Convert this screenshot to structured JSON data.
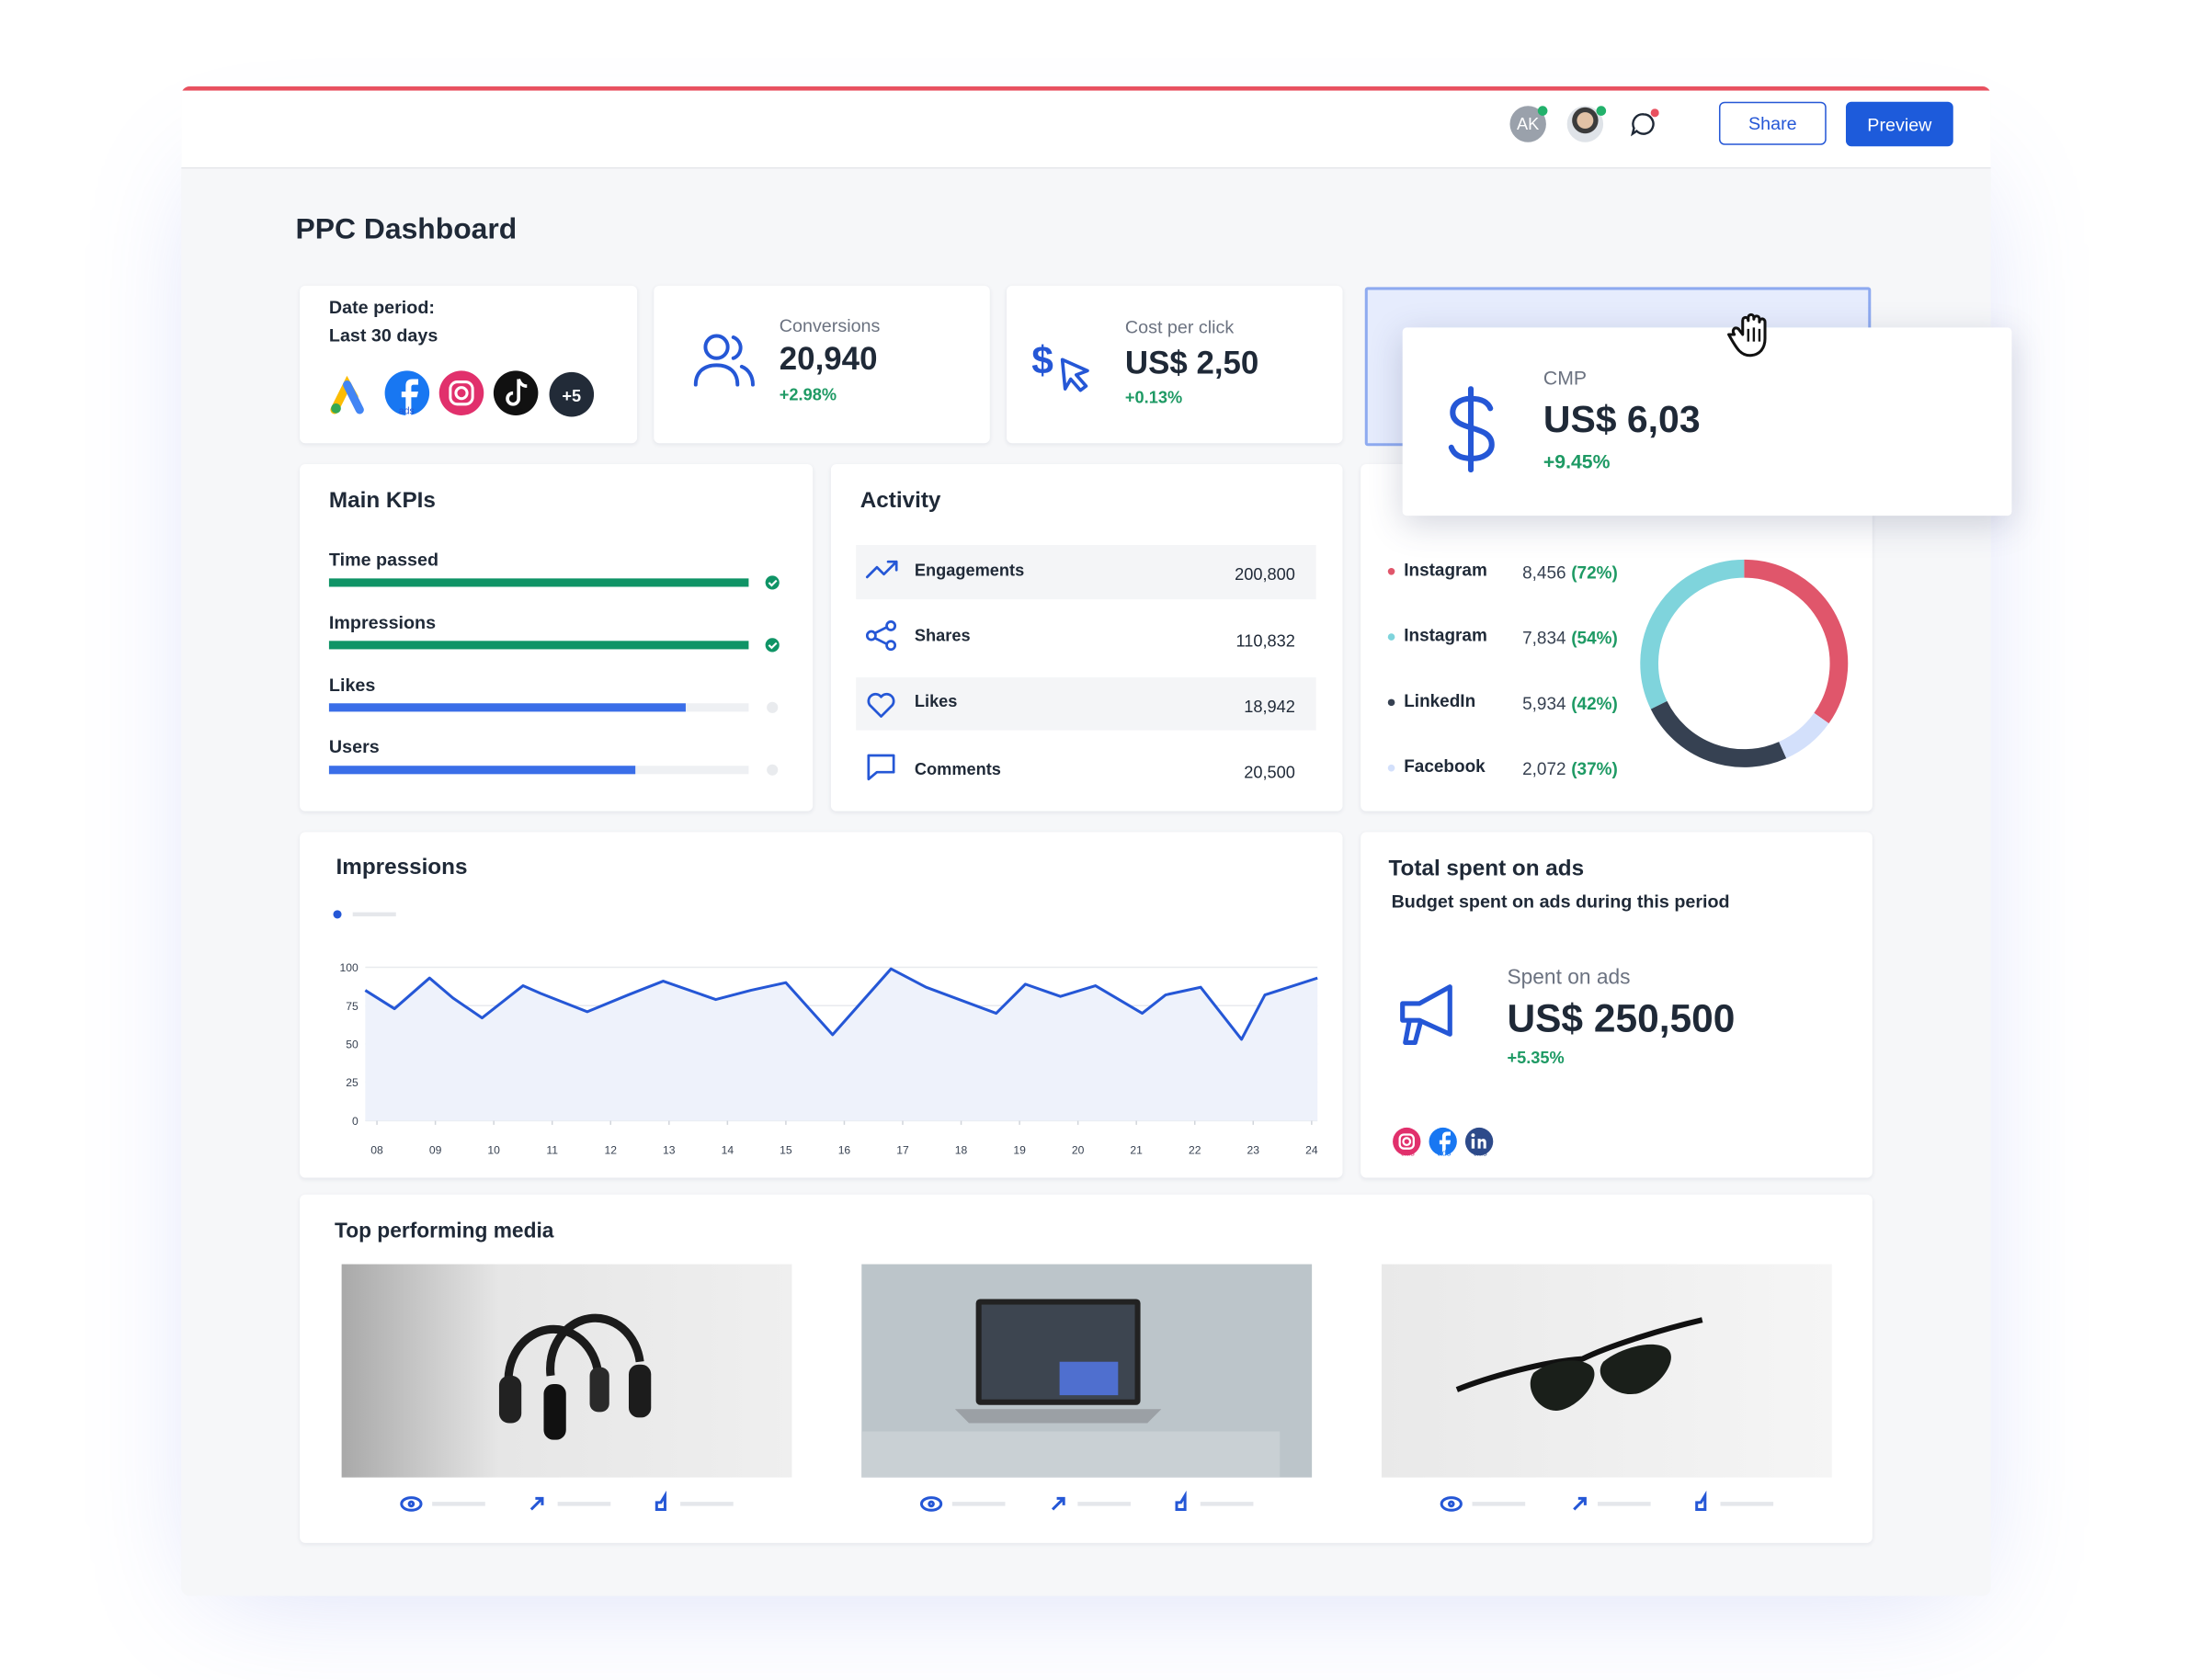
{
  "topbar": {
    "avatar_initials": "AK",
    "share": "Share",
    "preview": "Preview"
  },
  "header": {
    "title": "PPC Dashboard"
  },
  "date_card": {
    "label": "Date period:",
    "value": "Last 30 days",
    "more_sources": "+5",
    "badges": [
      "ads",
      "ads",
      "ads"
    ]
  },
  "metric_cards": [
    {
      "label": "Conversions",
      "value": "20,940",
      "change": "+2.98%"
    },
    {
      "label": "Cost per click",
      "value": "US$ 2,50",
      "change": "+0.13%"
    },
    {
      "label": "CMP",
      "value": "US$ 6,03",
      "change": "+9.45%"
    }
  ],
  "main_kpis": {
    "title": "Main KPIs",
    "items": [
      {
        "label": "Time passed",
        "progress": 100,
        "color": "#0f9466"
      },
      {
        "label": "Impressions",
        "progress": 100,
        "color": "#0f9466"
      },
      {
        "label": "Likes",
        "progress": 85,
        "color": "#3a6ee8"
      },
      {
        "label": "Users",
        "progress": 73,
        "color": "#3a6ee8"
      }
    ]
  },
  "activity": {
    "title": "Activity",
    "rows": [
      {
        "label": "Engagements",
        "value": "200,800"
      },
      {
        "label": "Shares",
        "value": "110,832"
      },
      {
        "label": "Likes",
        "value": "18,942"
      },
      {
        "label": "Comments",
        "value": "20,500"
      }
    ]
  },
  "channels": {
    "items": [
      {
        "name": "Instagram",
        "value": 8456,
        "value_label": "8,456",
        "share": "(72%)",
        "color": "#e0566b"
      },
      {
        "name": "Instagram",
        "value": 7834,
        "value_label": "7,834",
        "share": "(54%)",
        "color": "#7fd4dc"
      },
      {
        "name": "LinkedIn",
        "value": 5934,
        "value_label": "5,934",
        "share": "(42%)",
        "color": "#364152"
      },
      {
        "name": "Facebook",
        "value": 2072,
        "value_label": "2,072",
        "share": "(37%)",
        "color": "#d3e0fb"
      }
    ]
  },
  "impressions_chart": {
    "type": "line",
    "title": "Impressions",
    "color": "#2557d6",
    "x": [
      7.8,
      8.3,
      8.9,
      9.3,
      9.8,
      10.5,
      10.8,
      11.6,
      12.3,
      12.9,
      13.8,
      14.4,
      15.0,
      15.8,
      16.8,
      17.4,
      18.6,
      19.1,
      19.7,
      20.3,
      21.1,
      21.5,
      22.1,
      22.8,
      23.2,
      24.1
    ],
    "values": [
      85,
      73,
      93,
      80,
      67,
      88,
      83,
      71,
      82,
      91,
      79,
      85,
      90,
      56,
      99,
      87,
      70,
      89,
      81,
      88,
      70,
      82,
      87,
      53,
      82,
      93
    ],
    "xlim": [
      7.8,
      24.1
    ],
    "xticks": [
      {
        "value": 8,
        "label": "08"
      },
      {
        "value": 9,
        "label": "09"
      },
      10,
      11,
      12,
      13,
      14,
      15,
      16,
      17,
      18,
      19,
      20,
      21,
      22,
      23,
      24
    ],
    "ylim": [
      0,
      100
    ],
    "yticks": [
      0,
      25,
      50,
      75,
      100
    ],
    "grid": true
  },
  "total_spent": {
    "title": "Total spent on ads",
    "subtitle": "Budget spent on ads during this period",
    "label": "Spent on ads",
    "value": "US$ 250,500",
    "change": "+5.35%",
    "badges": [
      "ads",
      "ads",
      "ads"
    ]
  },
  "top_media": {
    "title": "Top performing media"
  }
}
